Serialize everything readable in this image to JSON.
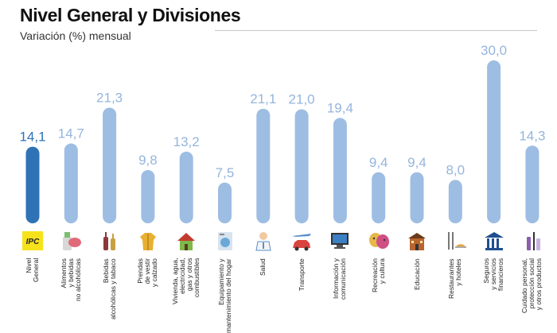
{
  "title": "Nivel General y Divisiones",
  "subtitle": "Variación (%) mensual",
  "colors": {
    "highlight": "#2f73b6",
    "bar": "#9dbde3",
    "label_highlight": "#2f73b6",
    "label": "#95b5dc"
  },
  "chart_data": {
    "type": "bar",
    "title": "Nivel General y Divisiones",
    "subtitle": "Variación (%) mensual",
    "ylabel": "",
    "xlabel": "",
    "ylim": [
      0,
      30
    ],
    "grid": false,
    "categories": [
      "Nivel\nGeneral",
      "Alimentos\ny bebidas\nno alcohólicas",
      "Bebidas\nalcohólicas y tabaco",
      "Prendas\nde vestir\ny calzado",
      "Vivienda, agua,\nelectricidad,\ngas y otros\ncombustibles",
      "Equipamiento y\nmantenimiento del hogar",
      "Salud",
      "Transporte",
      "Información y\ncomunicación",
      "Recreación\ny cultura",
      "Educación",
      "Restaurantes\ny hoteles",
      "Seguros\ny servicios\nfinancieros",
      "Cuidado personal,\nprotección social\ny otros productos"
    ],
    "values": [
      14.1,
      14.7,
      21.3,
      9.8,
      13.2,
      7.5,
      21.1,
      21.0,
      19.4,
      9.4,
      9.4,
      8.0,
      30.0,
      14.3
    ],
    "value_labels": [
      "14,1",
      "14,7",
      "21,3",
      "9,8",
      "13,2",
      "7,5",
      "21,1",
      "21,0",
      "19,4",
      "9,4",
      "9,4",
      "8,0",
      "30,0",
      "14,3"
    ],
    "highlight_index": 0
  },
  "icons": [
    {
      "name": "ipc-logo-icon",
      "text": "IPC"
    },
    {
      "name": "food-icon",
      "text": ""
    },
    {
      "name": "bottles-icon",
      "text": ""
    },
    {
      "name": "jacket-icon",
      "text": ""
    },
    {
      "name": "house-icon",
      "text": ""
    },
    {
      "name": "washing-machine-icon",
      "text": ""
    },
    {
      "name": "doctor-icon",
      "text": ""
    },
    {
      "name": "car-plane-icon",
      "text": ""
    },
    {
      "name": "computer-icon",
      "text": ""
    },
    {
      "name": "theater-masks-icon",
      "text": ""
    },
    {
      "name": "school-icon",
      "text": ""
    },
    {
      "name": "cutlery-icon",
      "text": ""
    },
    {
      "name": "bank-icon",
      "text": ""
    },
    {
      "name": "personal-care-icon",
      "text": ""
    }
  ]
}
